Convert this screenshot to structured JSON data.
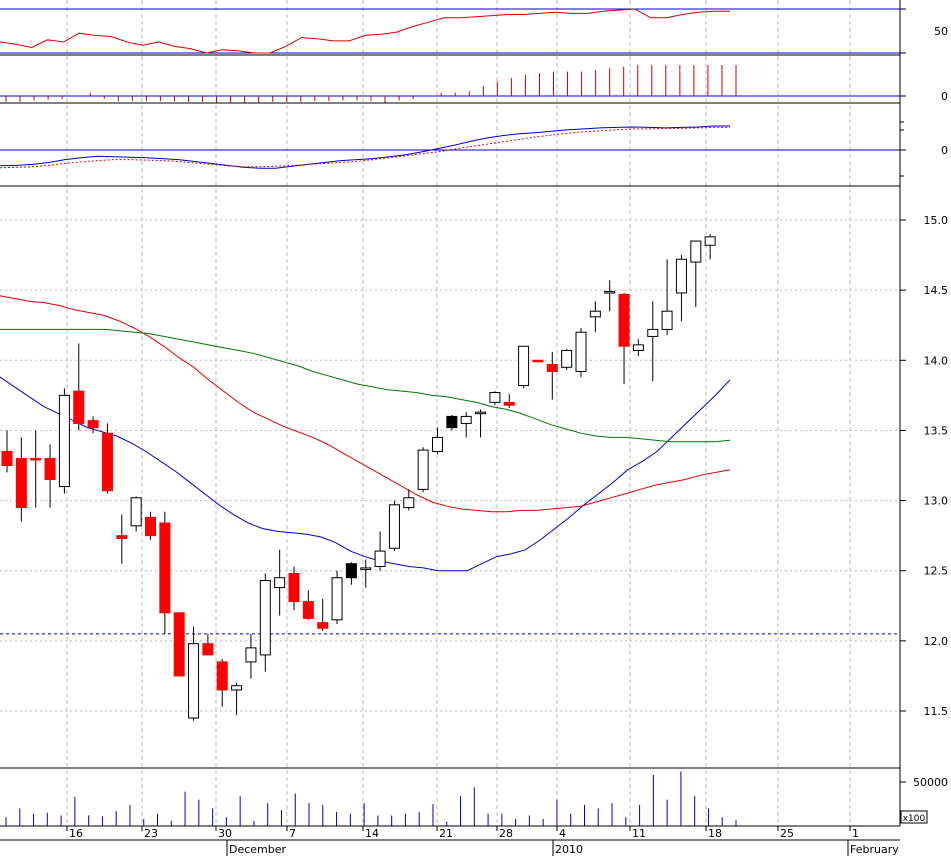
{
  "chart_data": {
    "type": "candlestick",
    "colors": {
      "up_body": "#ffffff",
      "down_body": "#ff0000",
      "black_body": "#000000",
      "ma_fast": "#0000cc",
      "ma_mid": "#dd0000",
      "ma_slow": "#007700",
      "macd": "#0000cc",
      "signal": "#dd0000",
      "histogram": "#cc0000",
      "volume": "#0000cc",
      "rsi": "#dd0000",
      "guide": "#0000cc",
      "grid": "#bbbbbb"
    },
    "x_axis": {
      "day_labels": [
        "16",
        "23",
        "30",
        "7",
        "14",
        "21",
        "28",
        "4",
        "11",
        "18",
        "25",
        "1"
      ],
      "month_labels": [
        "December",
        "2010",
        "February"
      ]
    },
    "price_panel": {
      "y_ticks": [
        "15.0",
        "14.5",
        "14.0",
        "13.5",
        "13.0",
        "12.5",
        "12.0",
        "11.5"
      ],
      "ylim": [
        11.05,
        15.45
      ],
      "reference_level": 12.05,
      "grid": true,
      "candles": [
        {
          "o": 13.35,
          "h": 13.5,
          "l": 13.2,
          "c": 13.25,
          "color": "red"
        },
        {
          "o": 13.3,
          "h": 13.45,
          "l": 12.85,
          "c": 12.95,
          "color": "red"
        },
        {
          "o": 13.3,
          "h": 13.5,
          "l": 12.95,
          "c": 13.3,
          "color": "red"
        },
        {
          "o": 13.3,
          "h": 13.4,
          "l": 12.95,
          "c": 13.15,
          "color": "red"
        },
        {
          "o": 13.1,
          "h": 13.8,
          "l": 13.05,
          "c": 13.75,
          "color": "white"
        },
        {
          "o": 13.78,
          "h": 14.12,
          "l": 13.5,
          "c": 13.55,
          "color": "red"
        },
        {
          "o": 13.57,
          "h": 13.6,
          "l": 13.48,
          "c": 13.52,
          "color": "red"
        },
        {
          "o": 13.48,
          "h": 13.55,
          "l": 13.05,
          "c": 13.07,
          "color": "red"
        },
        {
          "o": 12.75,
          "h": 12.9,
          "l": 12.55,
          "c": 12.73,
          "color": "red"
        },
        {
          "o": 12.82,
          "h": 13.03,
          "l": 12.78,
          "c": 13.02,
          "color": "white"
        },
        {
          "o": 12.88,
          "h": 12.92,
          "l": 12.72,
          "c": 12.75,
          "color": "red"
        },
        {
          "o": 12.84,
          "h": 12.92,
          "l": 12.05,
          "c": 12.2,
          "color": "red"
        },
        {
          "o": 12.2,
          "h": 12.2,
          "l": 11.75,
          "c": 11.75,
          "color": "red"
        },
        {
          "o": 11.45,
          "h": 12.1,
          "l": 11.43,
          "c": 11.98,
          "color": "white"
        },
        {
          "o": 11.98,
          "h": 12.05,
          "l": 11.9,
          "c": 11.9,
          "color": "red"
        },
        {
          "o": 11.85,
          "h": 11.87,
          "l": 11.53,
          "c": 11.65,
          "color": "red"
        },
        {
          "o": 11.65,
          "h": 11.7,
          "l": 11.47,
          "c": 11.68,
          "color": "white"
        },
        {
          "o": 11.85,
          "h": 12.05,
          "l": 11.73,
          "c": 11.95,
          "color": "white"
        },
        {
          "o": 11.9,
          "h": 12.48,
          "l": 11.78,
          "c": 12.43,
          "color": "white"
        },
        {
          "o": 12.38,
          "h": 12.65,
          "l": 12.18,
          "c": 12.45,
          "color": "white"
        },
        {
          "o": 12.48,
          "h": 12.53,
          "l": 12.22,
          "c": 12.28,
          "color": "red"
        },
        {
          "o": 12.28,
          "h": 12.36,
          "l": 12.15,
          "c": 12.16,
          "color": "red"
        },
        {
          "o": 12.13,
          "h": 12.3,
          "l": 12.07,
          "c": 12.09,
          "color": "red"
        },
        {
          "o": 12.15,
          "h": 12.5,
          "l": 12.12,
          "c": 12.45,
          "color": "white"
        },
        {
          "o": 12.45,
          "h": 12.56,
          "l": 12.4,
          "c": 12.55,
          "color": "black"
        },
        {
          "o": 12.52,
          "h": 12.58,
          "l": 12.38,
          "c": 12.52,
          "color": "white"
        },
        {
          "o": 12.53,
          "h": 12.78,
          "l": 12.5,
          "c": 12.64,
          "color": "white"
        },
        {
          "o": 12.66,
          "h": 13.0,
          "l": 12.64,
          "c": 12.97,
          "color": "white"
        },
        {
          "o": 12.95,
          "h": 13.08,
          "l": 12.93,
          "c": 13.02,
          "color": "white"
        },
        {
          "o": 13.08,
          "h": 13.38,
          "l": 13.06,
          "c": 13.36,
          "color": "white"
        },
        {
          "o": 13.35,
          "h": 13.52,
          "l": 13.33,
          "c": 13.45,
          "color": "white"
        },
        {
          "o": 13.52,
          "h": 13.61,
          "l": 13.5,
          "c": 13.6,
          "color": "black"
        },
        {
          "o": 13.55,
          "h": 13.63,
          "l": 13.45,
          "c": 13.6,
          "color": "white"
        },
        {
          "o": 13.62,
          "h": 13.65,
          "l": 13.45,
          "c": 13.63,
          "color": "white"
        },
        {
          "o": 13.7,
          "h": 13.78,
          "l": 13.68,
          "c": 13.77,
          "color": "white"
        },
        {
          "o": 13.7,
          "h": 13.76,
          "l": 13.66,
          "c": 13.68,
          "color": "red"
        },
        {
          "o": 13.82,
          "h": 14.1,
          "l": 13.8,
          "c": 14.1,
          "color": "white"
        },
        {
          "o": 14.0,
          "h": 14.0,
          "l": 14.0,
          "c": 14.0,
          "color": "red"
        },
        {
          "o": 13.97,
          "h": 14.06,
          "l": 13.72,
          "c": 13.92,
          "color": "red"
        },
        {
          "o": 13.95,
          "h": 14.08,
          "l": 13.93,
          "c": 14.07,
          "color": "white"
        },
        {
          "o": 13.92,
          "h": 14.23,
          "l": 13.88,
          "c": 14.2,
          "color": "white"
        },
        {
          "o": 14.31,
          "h": 14.42,
          "l": 14.2,
          "c": 14.35,
          "color": "white"
        },
        {
          "o": 14.48,
          "h": 14.57,
          "l": 14.35,
          "c": 14.49,
          "color": "white"
        },
        {
          "o": 14.47,
          "h": 14.48,
          "l": 13.83,
          "c": 14.1,
          "color": "red"
        },
        {
          "o": 14.07,
          "h": 14.15,
          "l": 14.03,
          "c": 14.11,
          "color": "white"
        },
        {
          "o": 14.17,
          "h": 14.42,
          "l": 13.85,
          "c": 14.22,
          "color": "white"
        },
        {
          "o": 14.22,
          "h": 14.72,
          "l": 14.18,
          "c": 14.35,
          "color": "white"
        },
        {
          "o": 14.48,
          "h": 14.75,
          "l": 14.28,
          "c": 14.72,
          "color": "white"
        },
        {
          "o": 14.7,
          "h": 14.85,
          "l": 14.38,
          "c": 14.85,
          "color": "white"
        },
        {
          "o": 14.82,
          "h": 14.9,
          "l": 14.72,
          "c": 14.88,
          "color": "white"
        }
      ],
      "moving_averages": [
        {
          "color": "#0000cc",
          "values": [
            13.88,
            13.81,
            13.74,
            13.67,
            13.62,
            13.57,
            13.52,
            13.49,
            13.46,
            13.41,
            13.35,
            13.28,
            13.21,
            13.13,
            13.05,
            12.97,
            12.9,
            12.84,
            12.8,
            12.78,
            12.77,
            12.76,
            12.74,
            12.7,
            12.64,
            12.6,
            12.57,
            12.55,
            12.53,
            12.52,
            12.5,
            12.5,
            12.5,
            12.55,
            12.6,
            12.62,
            12.65,
            12.72,
            12.8,
            12.88,
            12.97,
            13.05,
            13.13,
            13.22,
            13.28,
            13.35,
            13.45,
            13.55,
            13.65,
            13.75,
            13.86
          ]
        },
        {
          "color": "#dd0000",
          "values": [
            14.46,
            14.44,
            14.42,
            14.41,
            14.39,
            14.36,
            14.34,
            14.32,
            14.28,
            14.23,
            14.17,
            14.1,
            14.02,
            13.95,
            13.86,
            13.78,
            13.7,
            13.63,
            13.58,
            13.53,
            13.49,
            13.45,
            13.4,
            13.34,
            13.28,
            13.22,
            13.16,
            13.1,
            13.04,
            12.99,
            12.96,
            12.94,
            12.93,
            12.92,
            12.92,
            12.93,
            12.93,
            12.94,
            12.95,
            12.96,
            12.99,
            13.02,
            13.05,
            13.08,
            13.11,
            13.13,
            13.15,
            13.18,
            13.2,
            13.22
          ]
        },
        {
          "color": "#007700",
          "values": [
            14.22,
            14.22,
            14.22,
            14.22,
            14.22,
            14.22,
            14.22,
            14.22,
            14.21,
            14.2,
            14.19,
            14.17,
            14.15,
            14.13,
            14.11,
            14.09,
            14.07,
            14.05,
            14.02,
            13.99,
            13.96,
            13.92,
            13.89,
            13.86,
            13.83,
            13.81,
            13.79,
            13.78,
            13.77,
            13.75,
            13.74,
            13.72,
            13.7,
            13.67,
            13.65,
            13.62,
            13.58,
            13.54,
            13.51,
            13.48,
            13.46,
            13.45,
            13.45,
            13.44,
            13.43,
            13.42,
            13.42,
            13.42,
            13.42,
            13.43
          ]
        }
      ]
    },
    "volume_panel": {
      "y_ticks": [
        "50000"
      ],
      "multiplier_label": "x100",
      "max": 62000,
      "values": [
        10000,
        20000,
        14000,
        15000,
        12000,
        33000,
        12000,
        11000,
        17000,
        24000,
        8000,
        14000,
        6000,
        39000,
        30000,
        20000,
        10000,
        34000,
        6000,
        26000,
        18000,
        37000,
        26000,
        24000,
        16000,
        14000,
        26000,
        12000,
        12000,
        14000,
        16000,
        25000,
        5000,
        34000,
        44000,
        14000,
        14000,
        8000,
        12000,
        8000,
        30000,
        14000,
        24000,
        20000,
        26000,
        10000,
        24000,
        58000,
        30000,
        62000,
        34000,
        20000,
        10000,
        7000
      ]
    },
    "macd_panel": {
      "y_ticks": [
        "0"
      ],
      "macd": [
        -0.33,
        -0.32,
        -0.3,
        -0.26,
        -0.2,
        -0.16,
        -0.13,
        -0.14,
        -0.15,
        -0.16,
        -0.18,
        -0.2,
        -0.24,
        -0.28,
        -0.32,
        -0.36,
        -0.38,
        -0.38,
        -0.34,
        -0.3,
        -0.26,
        -0.22,
        -0.2,
        -0.18,
        -0.14,
        -0.1,
        -0.04,
        0.03,
        0.1,
        0.18,
        0.25,
        0.3,
        0.34,
        0.36,
        0.39,
        0.42,
        0.44,
        0.46,
        0.47,
        0.48,
        0.47,
        0.46,
        0.47,
        0.48,
        0.5,
        0.5
      ],
      "signal": [
        -0.37,
        -0.36,
        -0.35,
        -0.32,
        -0.28,
        -0.25,
        -0.22,
        -0.2,
        -0.2,
        -0.21,
        -0.22,
        -0.24,
        -0.27,
        -0.3,
        -0.33,
        -0.35,
        -0.35,
        -0.34,
        -0.32,
        -0.3,
        -0.28,
        -0.26,
        -0.24,
        -0.2,
        -0.16,
        -0.12,
        -0.08,
        -0.04,
        0.02,
        0.07,
        0.12,
        0.17,
        0.22,
        0.27,
        0.31,
        0.35,
        0.38,
        0.4,
        0.42,
        0.44,
        0.44,
        0.45,
        0.45,
        0.46,
        0.47,
        0.47
      ],
      "ylim": [
        -1.0,
        0.8
      ]
    },
    "histogram_panel": {
      "y_ticks": [
        "0"
      ],
      "values": [
        -0.4,
        -0.4,
        -0.3,
        -0.25,
        -0.2,
        0,
        0.1,
        -0.2,
        -0.35,
        -0.35,
        -0.35,
        -0.35,
        -0.35,
        -0.4,
        -0.4,
        -0.45,
        -0.45,
        -0.45,
        -0.45,
        -0.4,
        -0.4,
        -0.4,
        -0.35,
        -0.35,
        -0.3,
        -0.3,
        -0.35,
        -0.45,
        -0.3,
        -0.2,
        0,
        0.1,
        0.1,
        0.15,
        0.3,
        0.45,
        0.55,
        0.65,
        0.7,
        0.75,
        0.75,
        0.75,
        0.8,
        0.85,
        0.9,
        0.95,
        0.95,
        0.95,
        0.95,
        0.95,
        0.95,
        0.95,
        0.95
      ],
      "ylim": [
        -1.2,
        1.1
      ]
    },
    "rsi_panel": {
      "y_ticks": [
        "50"
      ],
      "upper_level": 70,
      "lower_level": 30,
      "ylim": [
        18,
        82
      ],
      "values": [
        40,
        38,
        35,
        42,
        40,
        48,
        46,
        45,
        40,
        37,
        40,
        36,
        34,
        30,
        33,
        32,
        30,
        30,
        36,
        44,
        43,
        41,
        41,
        46,
        47,
        49,
        54,
        58,
        62,
        62,
        63,
        64,
        65,
        65,
        66,
        67,
        66,
        66,
        68,
        69,
        70,
        62,
        62,
        65,
        67,
        68,
        68
      ]
    }
  }
}
